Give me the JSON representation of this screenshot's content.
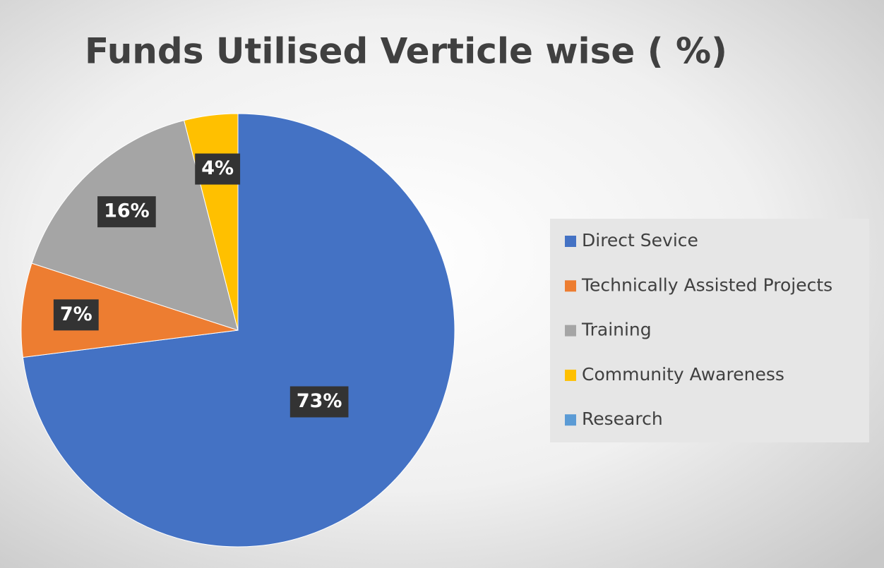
{
  "chart_data": {
    "type": "pie",
    "title": "Funds Utilised Verticle wise ( %)",
    "categories": [
      "Direct Sevice",
      "Technically Assisted Projects",
      "Training",
      "Community Awareness",
      "Research"
    ],
    "values": [
      73,
      7,
      16,
      4,
      0
    ],
    "value_labels": [
      "73%",
      "7%",
      "16%",
      "4%",
      null
    ],
    "colors": [
      "#4472c4",
      "#ed7d31",
      "#a5a5a5",
      "#ffc000",
      "#5b9bd5"
    ],
    "legend": "right"
  }
}
